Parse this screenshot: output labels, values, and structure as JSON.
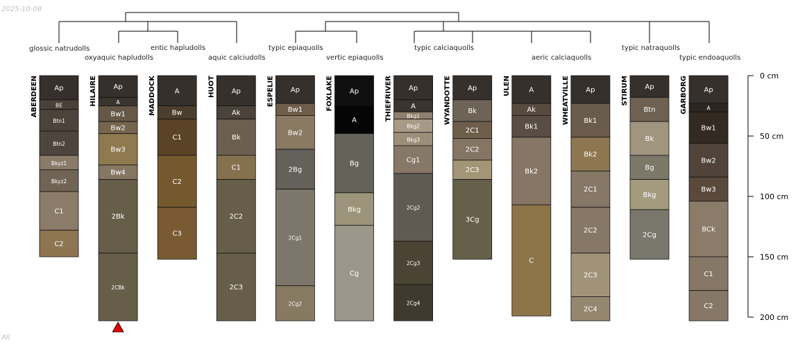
{
  "date_stamp": "2025-10-08",
  "footer_label": "All",
  "depth_axis": {
    "unit": "cm",
    "max": 200,
    "ticks": [
      0,
      50,
      100,
      150,
      200
    ]
  },
  "profiles": [
    {
      "name": "ABERDEEN",
      "taxon": "glossic natrudolls",
      "horizons": [
        {
          "n": "Ap",
          "t": 0,
          "b": 20,
          "c": "#362f2b"
        },
        {
          "n": "BE",
          "t": 20,
          "b": 28,
          "c": "#4a4039"
        },
        {
          "n": "Btn1",
          "t": 28,
          "b": 46,
          "c": "#4c433b"
        },
        {
          "n": "Btn2",
          "t": 46,
          "b": 66,
          "c": "#4e463e"
        },
        {
          "n": "Bkyz1",
          "t": 66,
          "b": 78,
          "c": "#8a7a68"
        },
        {
          "n": "Bkyz2",
          "t": 78,
          "b": 96,
          "c": "#716454"
        },
        {
          "n": "C1",
          "t": 96,
          "b": 128,
          "c": "#8b7b69"
        },
        {
          "n": "C2",
          "t": 128,
          "b": 150,
          "c": "#8e7551"
        }
      ]
    },
    {
      "name": "HILAIRE",
      "taxon": "oxyaquic hapludolls",
      "truncated": true,
      "horizons": [
        {
          "n": "Ap",
          "t": 0,
          "b": 18,
          "c": "#35302c"
        },
        {
          "n": "A",
          "t": 18,
          "b": 25,
          "c": "#3b3530"
        },
        {
          "n": "Bw1",
          "t": 25,
          "b": 38,
          "c": "#665847"
        },
        {
          "n": "Bw2",
          "t": 38,
          "b": 48,
          "c": "#75654f"
        },
        {
          "n": "Bw3",
          "t": 48,
          "b": 74,
          "c": "#8f7a4f"
        },
        {
          "n": "Bw4",
          "t": 74,
          "b": 86,
          "c": "#867763"
        },
        {
          "n": "2Bk",
          "t": 86,
          "b": 147,
          "c": "#675e4a"
        },
        {
          "n": "2CBk",
          "t": 147,
          "b": 203,
          "c": "#675e4a"
        }
      ]
    },
    {
      "name": "MADDOCK",
      "taxon": "entic hapludolls",
      "horizons": [
        {
          "n": "A",
          "t": 0,
          "b": 25,
          "c": "#35302c"
        },
        {
          "n": "Bw",
          "t": 25,
          "b": 36,
          "c": "#4b3e2d"
        },
        {
          "n": "C1",
          "t": 36,
          "b": 66,
          "c": "#5b4328"
        },
        {
          "n": "C2",
          "t": 66,
          "b": 109,
          "c": "#76582f"
        },
        {
          "n": "C3",
          "t": 109,
          "b": 152,
          "c": "#795a33"
        }
      ]
    },
    {
      "name": "HUOT",
      "taxon": "aquic calciudolls",
      "horizons": [
        {
          "n": "Ap",
          "t": 0,
          "b": 25,
          "c": "#35302c"
        },
        {
          "n": "Ak",
          "t": 25,
          "b": 36,
          "c": "#4a423b"
        },
        {
          "n": "Bk",
          "t": 36,
          "b": 66,
          "c": "#6c5f50"
        },
        {
          "n": "C1",
          "t": 66,
          "b": 86,
          "c": "#86714f"
        },
        {
          "n": "2C2",
          "t": 86,
          "b": 147,
          "c": "#675e4a"
        },
        {
          "n": "2C3",
          "t": 147,
          "b": 203,
          "c": "#675e4a"
        }
      ]
    },
    {
      "name": "ESPELIE",
      "taxon": "typic epiaquolls",
      "horizons": [
        {
          "n": "Ap",
          "t": 0,
          "b": 23,
          "c": "#35302c"
        },
        {
          "n": "Bw1",
          "t": 23,
          "b": 33,
          "c": "#6d5e4a"
        },
        {
          "n": "Bw2",
          "t": 33,
          "b": 61,
          "c": "#8a7a63"
        },
        {
          "n": "2Bg",
          "t": 61,
          "b": 94,
          "c": "#64605a"
        },
        {
          "n": "2Cg1",
          "t": 94,
          "b": 174,
          "c": "#7c776a"
        },
        {
          "n": "2Cg2",
          "t": 174,
          "b": 203,
          "c": "#877a63"
        }
      ]
    },
    {
      "name": "FOXLAKE",
      "taxon": "vertic epiaquolls",
      "horizons": [
        {
          "n": "Ap",
          "t": 0,
          "b": 25,
          "c": "#0f0f0f"
        },
        {
          "n": "A",
          "t": 25,
          "b": 48,
          "c": "#050505"
        },
        {
          "n": "Bg",
          "t": 48,
          "b": 97,
          "c": "#65625a"
        },
        {
          "n": "Bkg",
          "t": 97,
          "b": 124,
          "c": "#9c947a"
        },
        {
          "n": "Cg",
          "t": 124,
          "b": 203,
          "c": "#9c978a"
        }
      ]
    },
    {
      "name": "THIEFRIVER",
      "taxon": "typic calciaquolls",
      "horizons": [
        {
          "n": "Ap",
          "t": 0,
          "b": 20,
          "c": "#35302c"
        },
        {
          "n": "A",
          "t": 20,
          "b": 30,
          "c": "#3a3430"
        },
        {
          "n": "Bkg1",
          "t": 30,
          "b": 36,
          "c": "#8e7e6b"
        },
        {
          "n": "Bkg2",
          "t": 36,
          "b": 47,
          "c": "#a89a86"
        },
        {
          "n": "Bkg3",
          "t": 47,
          "b": 58,
          "c": "#9d8e79"
        },
        {
          "n": "Cg1",
          "t": 58,
          "b": 81,
          "c": "#877766"
        },
        {
          "n": "2Cg2",
          "t": 81,
          "b": 137,
          "c": "#5f5b52"
        },
        {
          "n": "2Cg3",
          "t": 137,
          "b": 173,
          "c": "#4b4334"
        },
        {
          "n": "2Cg4",
          "t": 173,
          "b": 203,
          "c": "#3f3a2e"
        }
      ]
    },
    {
      "name": "WYANDOTTE",
      "taxon": "",
      "horizons": [
        {
          "n": "Ap",
          "t": 0,
          "b": 20,
          "c": "#35302c"
        },
        {
          "n": "Bk",
          "t": 20,
          "b": 38,
          "c": "#6d6356"
        },
        {
          "n": "2C1",
          "t": 38,
          "b": 52,
          "c": "#6d5f4b"
        },
        {
          "n": "2C2",
          "t": 52,
          "b": 70,
          "c": "#857563"
        },
        {
          "n": "2C3",
          "t": 70,
          "b": 86,
          "c": "#a39676"
        },
        {
          "n": "3Cg",
          "t": 86,
          "b": 152,
          "c": "#665f4a"
        }
      ]
    },
    {
      "name": "ULEN",
      "taxon": "aeric calciaquolls",
      "horizons": [
        {
          "n": "A",
          "t": 0,
          "b": 23,
          "c": "#35302c"
        },
        {
          "n": "Ak",
          "t": 23,
          "b": 33,
          "c": "#574a3e"
        },
        {
          "n": "Bk1",
          "t": 33,
          "b": 51,
          "c": "#594e44"
        },
        {
          "n": "Bk2",
          "t": 51,
          "b": 107,
          "c": "#877665"
        },
        {
          "n": "C",
          "t": 107,
          "b": 199,
          "c": "#8d7549"
        }
      ]
    },
    {
      "name": "WHEATVILLE",
      "taxon": "",
      "horizons": [
        {
          "n": "Ap",
          "t": 0,
          "b": 23,
          "c": "#35302c"
        },
        {
          "n": "Bk1",
          "t": 23,
          "b": 51,
          "c": "#6a5b4d"
        },
        {
          "n": "Bk2",
          "t": 51,
          "b": 79,
          "c": "#8d7650"
        },
        {
          "n": "2C1",
          "t": 79,
          "b": 109,
          "c": "#877766"
        },
        {
          "n": "2C2",
          "t": 109,
          "b": 147,
          "c": "#877766"
        },
        {
          "n": "2C3",
          "t": 147,
          "b": 183,
          "c": "#a19378"
        },
        {
          "n": "2C4",
          "t": 183,
          "b": 203,
          "c": "#958670"
        }
      ]
    },
    {
      "name": "STIRUM",
      "taxon": "typic natraquolls",
      "horizons": [
        {
          "n": "Ap",
          "t": 0,
          "b": 18,
          "c": "#35302c"
        },
        {
          "n": "Btn",
          "t": 18,
          "b": 38,
          "c": "#6e6152"
        },
        {
          "n": "Bk",
          "t": 38,
          "b": 66,
          "c": "#a0957f"
        },
        {
          "n": "Bg",
          "t": 66,
          "b": 86,
          "c": "#7c7868"
        },
        {
          "n": "Bkg",
          "t": 86,
          "b": 111,
          "c": "#a49b7f"
        },
        {
          "n": "2Cg",
          "t": 111,
          "b": 152,
          "c": "#7a776c"
        }
      ]
    },
    {
      "name": "GARBORG",
      "taxon": "typic endoaquolls",
      "horizons": [
        {
          "n": "Ap",
          "t": 0,
          "b": 23,
          "c": "#35302c"
        },
        {
          "n": "A",
          "t": 23,
          "b": 30,
          "c": "#2c2622"
        },
        {
          "n": "Bw1",
          "t": 30,
          "b": 56,
          "c": "#332a21"
        },
        {
          "n": "Bw2",
          "t": 56,
          "b": 84,
          "c": "#50443a"
        },
        {
          "n": "Bw3",
          "t": 84,
          "b": 104,
          "c": "#5a4a3b"
        },
        {
          "n": "BCk",
          "t": 104,
          "b": 150,
          "c": "#8b7c69"
        },
        {
          "n": "C1",
          "t": 150,
          "b": 178,
          "c": "#877766"
        },
        {
          "n": "C2",
          "t": 178,
          "b": 203,
          "c": "#877766"
        }
      ]
    }
  ]
}
